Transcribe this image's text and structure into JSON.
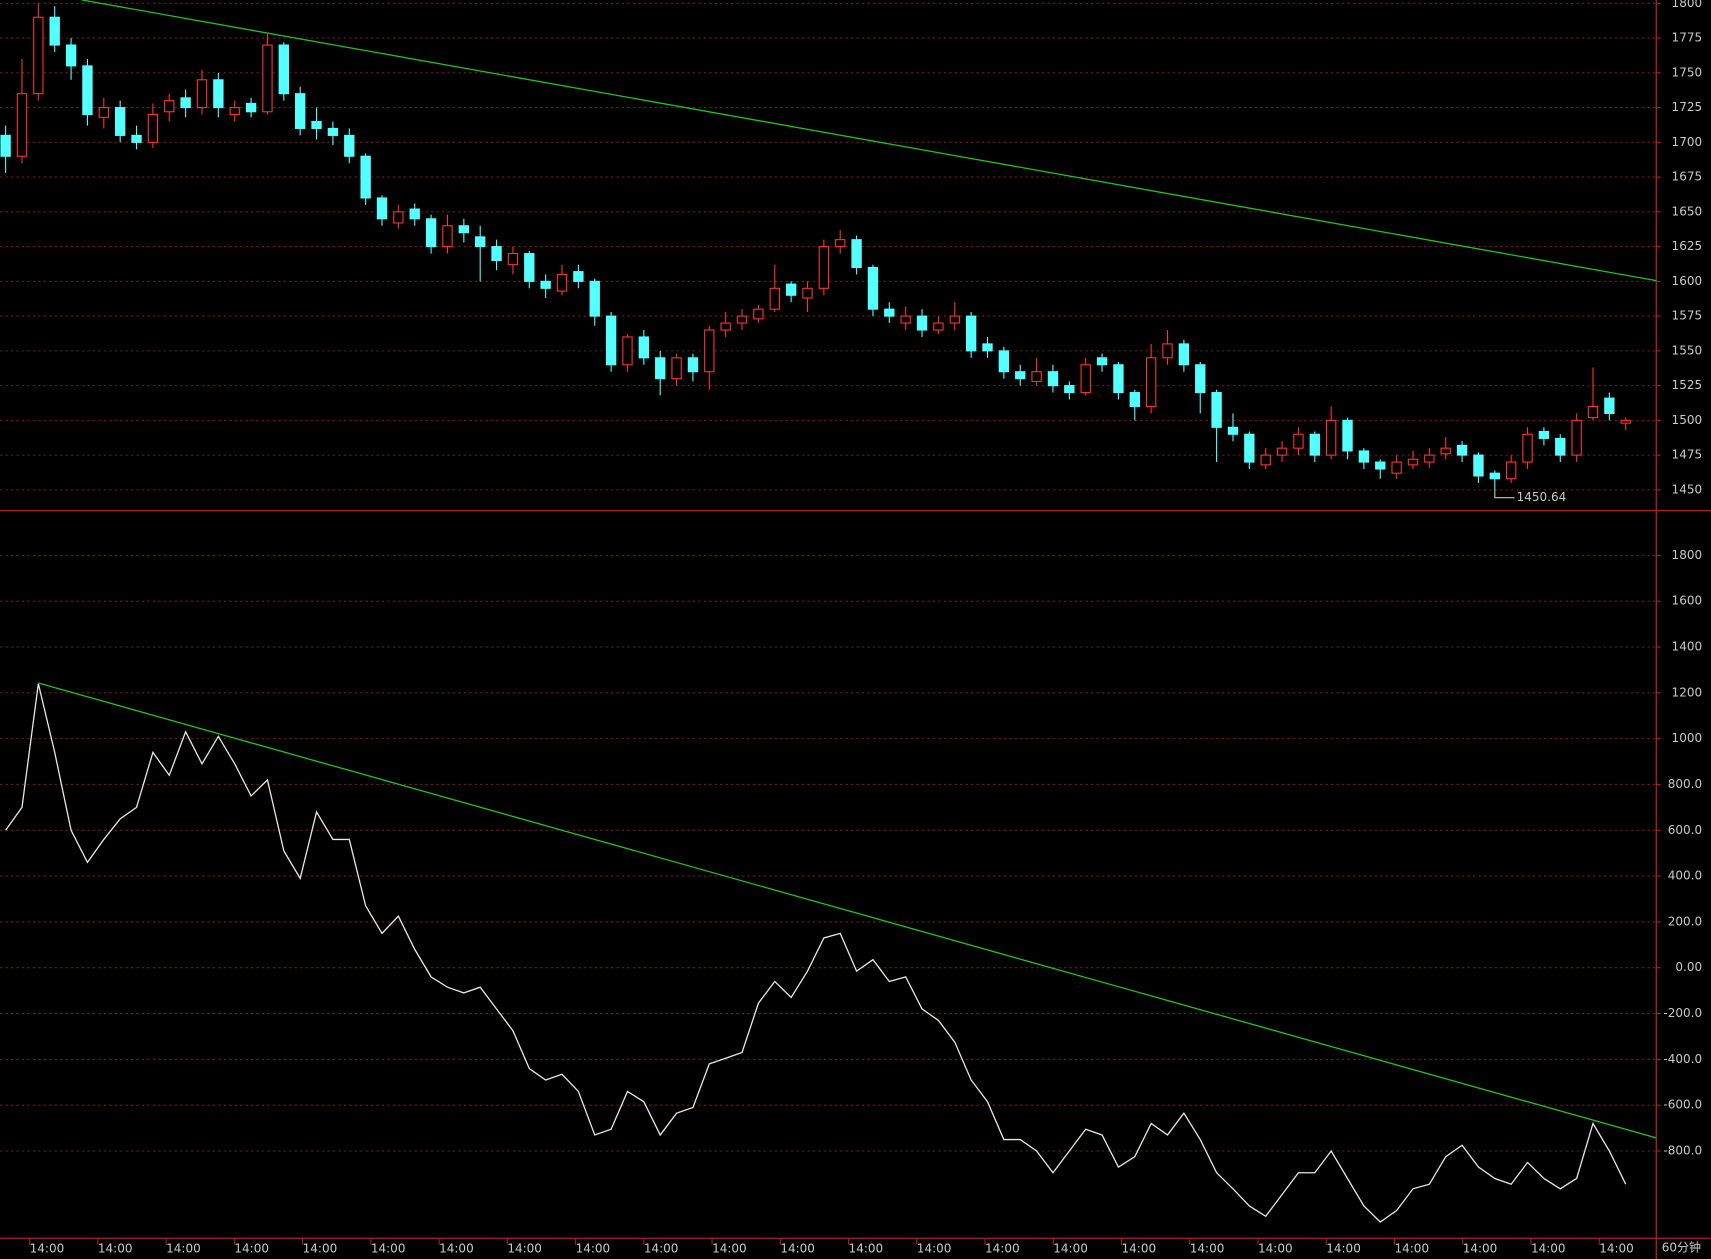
{
  "chart_data": [
    {
      "type": "candlestick",
      "open": [
        1705,
        1690,
        1735,
        1790,
        1770,
        1755,
        1718,
        1725,
        1705,
        1700,
        1722,
        1732,
        1725,
        1745,
        1720,
        1728,
        1722,
        1770,
        1735,
        1715,
        1710,
        1705,
        1690,
        1660,
        1642,
        1652,
        1645,
        1625,
        1640,
        1632,
        1625,
        1612,
        1620,
        1600,
        1593,
        1607,
        1600,
        1575,
        1540,
        1560,
        1545,
        1530,
        1545,
        1535,
        1565,
        1570,
        1573,
        1580,
        1598,
        1588,
        1595,
        1625,
        1630,
        1610,
        1580,
        1570,
        1575,
        1565,
        1570,
        1575,
        1555,
        1550,
        1535,
        1528,
        1535,
        1525,
        1520,
        1545,
        1540,
        1520,
        1510,
        1545,
        1555,
        1540,
        1520,
        1495,
        1490,
        1468,
        1475,
        1480,
        1490,
        1475,
        1500,
        1478,
        1470,
        1462,
        1468,
        1470,
        1476,
        1482,
        1475,
        1462,
        1458,
        1470,
        1492,
        1487,
        1475,
        1502,
        1516,
        1498
      ],
      "high": [
        1712,
        1760,
        1800,
        1798,
        1775,
        1760,
        1732,
        1730,
        1712,
        1728,
        1735,
        1738,
        1752,
        1750,
        1730,
        1732,
        1778,
        1772,
        1740,
        1725,
        1715,
        1710,
        1692,
        1662,
        1655,
        1656,
        1648,
        1648,
        1645,
        1640,
        1630,
        1625,
        1622,
        1605,
        1612,
        1612,
        1602,
        1578,
        1562,
        1565,
        1550,
        1548,
        1548,
        1568,
        1578,
        1580,
        1583,
        1612,
        1600,
        1600,
        1630,
        1637,
        1633,
        1612,
        1585,
        1582,
        1580,
        1575,
        1585,
        1578,
        1560,
        1553,
        1540,
        1545,
        1540,
        1528,
        1545,
        1548,
        1542,
        1522,
        1555,
        1565,
        1558,
        1542,
        1522,
        1505,
        1492,
        1480,
        1485,
        1495,
        1492,
        1510,
        1502,
        1480,
        1472,
        1475,
        1478,
        1480,
        1488,
        1485,
        1477,
        1464,
        1475,
        1495,
        1495,
        1490,
        1505,
        1538,
        1520,
        1502
      ],
      "low": [
        1678,
        1685,
        1730,
        1765,
        1745,
        1712,
        1710,
        1700,
        1695,
        1696,
        1715,
        1718,
        1720,
        1718,
        1715,
        1718,
        1720,
        1730,
        1705,
        1702,
        1698,
        1685,
        1655,
        1640,
        1638,
        1640,
        1620,
        1620,
        1628,
        1600,
        1608,
        1605,
        1595,
        1588,
        1590,
        1595,
        1568,
        1535,
        1535,
        1540,
        1518,
        1525,
        1528,
        1522,
        1560,
        1565,
        1570,
        1578,
        1585,
        1578,
        1590,
        1620,
        1605,
        1575,
        1570,
        1565,
        1560,
        1562,
        1565,
        1545,
        1545,
        1530,
        1525,
        1525,
        1520,
        1515,
        1518,
        1535,
        1515,
        1500,
        1505,
        1540,
        1535,
        1505,
        1470,
        1485,
        1465,
        1465,
        1470,
        1475,
        1470,
        1472,
        1472,
        1465,
        1458,
        1458,
        1465,
        1466,
        1472,
        1470,
        1455,
        1450.64,
        1455,
        1465,
        1482,
        1470,
        1470,
        1500,
        1500,
        1493
      ],
      "close": [
        1690,
        1735,
        1790,
        1770,
        1755,
        1720,
        1725,
        1705,
        1700,
        1720,
        1730,
        1725,
        1745,
        1725,
        1725,
        1722,
        1770,
        1735,
        1710,
        1710,
        1705,
        1690,
        1660,
        1645,
        1650,
        1645,
        1625,
        1640,
        1635,
        1625,
        1615,
        1620,
        1600,
        1595,
        1605,
        1600,
        1575,
        1540,
        1560,
        1545,
        1530,
        1545,
        1535,
        1565,
        1570,
        1575,
        1580,
        1595,
        1590,
        1595,
        1625,
        1630,
        1610,
        1580,
        1575,
        1575,
        1565,
        1570,
        1575,
        1550,
        1550,
        1535,
        1530,
        1535,
        1525,
        1520,
        1540,
        1540,
        1520,
        1510,
        1545,
        1555,
        1540,
        1520,
        1495,
        1490,
        1470,
        1475,
        1480,
        1490,
        1475,
        1500,
        1478,
        1470,
        1465,
        1470,
        1472,
        1475,
        1480,
        1475,
        1460,
        1458,
        1470,
        1490,
        1487,
        1475,
        1500,
        1510,
        1505,
        1500
      ],
      "up_color": "#ff3232",
      "down_color": "#54ffff",
      "xlim": [
        -0.333,
        100.867
      ],
      "ylim": [
        1435.1,
        1802.4
      ],
      "yticks": [
        1450,
        1475,
        1500,
        1525,
        1550,
        1575,
        1600,
        1625,
        1650,
        1675,
        1700,
        1725,
        1750,
        1775,
        1800
      ],
      "grid": true,
      "trendline": {
        "color": "#22c022",
        "x": [
          4.67,
          100.867
        ],
        "y": [
          1802.4,
          1600.5
        ]
      }
    },
    {
      "type": "line",
      "values": [
        600,
        700,
        1240,
        940,
        600,
        460,
        560,
        650,
        700,
        940,
        840,
        1030,
        890,
        1010,
        890,
        750,
        820,
        510,
        390,
        680,
        560,
        560,
        270,
        150,
        225,
        80,
        -40,
        -85,
        -110,
        -85,
        -180,
        -275,
        -440,
        -490,
        -465,
        -540,
        -730,
        -705,
        -540,
        -585,
        -730,
        -635,
        -610,
        -420,
        -395,
        -370,
        -155,
        -60,
        -130,
        -15,
        130,
        150,
        -15,
        35,
        -60,
        -40,
        -180,
        -230,
        -325,
        -490,
        -585,
        -750,
        -750,
        -800,
        -895,
        -800,
        -705,
        -730,
        -870,
        -825,
        -680,
        -730,
        -635,
        -750,
        -895,
        -965,
        -1040,
        -1085,
        -990,
        -895,
        -895,
        -800,
        -920,
        -1040,
        -1110,
        -1060,
        -965,
        -945,
        -825,
        -775,
        -870,
        -920,
        -945,
        -850,
        -920,
        -965,
        -920,
        -680,
        -800,
        -945
      ],
      "color": "#e6e6e6",
      "xlim": [
        -0.333,
        100.867
      ],
      "ylim": [
        -1181,
        1986
      ],
      "yticks": [
        {
          "value": -800,
          "label": "-800.0"
        },
        {
          "value": -600,
          "label": "-600.0"
        },
        {
          "value": -400,
          "label": "-400.0"
        },
        {
          "value": -200,
          "label": "-200.0"
        },
        {
          "value": 0,
          "label": "0.00"
        },
        {
          "value": 200,
          "label": "200.0"
        },
        {
          "value": 400,
          "label": "400.0"
        },
        {
          "value": 600,
          "label": "600.0"
        },
        {
          "value": 800,
          "label": "800.0"
        },
        1000,
        1200,
        1400,
        1600,
        1800
      ],
      "xticks": [
        {
          "value": 1.47,
          "label": "14:00"
        },
        {
          "value": 5.64,
          "label": "14:00"
        },
        {
          "value": 9.81,
          "label": "14:00"
        },
        {
          "value": 13.98,
          "label": "14:00"
        },
        {
          "value": 18.15,
          "label": "14:00"
        },
        {
          "value": 22.32,
          "label": "14:00"
        },
        {
          "value": 26.49,
          "label": "14:00"
        },
        {
          "value": 30.66,
          "label": "14:00"
        },
        {
          "value": 34.83,
          "label": "14:00"
        },
        {
          "value": 39.0,
          "label": "14:00"
        },
        {
          "value": 43.17,
          "label": "14:00"
        },
        {
          "value": 47.34,
          "label": "14:00"
        },
        {
          "value": 51.51,
          "label": "14:00"
        },
        {
          "value": 55.68,
          "label": "14:00"
        },
        {
          "value": 59.85,
          "label": "14:00"
        },
        {
          "value": 64.02,
          "label": "14:00"
        },
        {
          "value": 68.19,
          "label": "14:00"
        },
        {
          "value": 72.36,
          "label": "14:00"
        },
        {
          "value": 76.53,
          "label": "14:00"
        },
        {
          "value": 80.7,
          "label": "14:00"
        },
        {
          "value": 84.87,
          "label": "14:00"
        },
        {
          "value": 89.04,
          "label": "14:00"
        },
        {
          "value": 93.21,
          "label": "14:00"
        },
        {
          "value": 97.38,
          "label": "14:00"
        }
      ],
      "grid": true,
      "trendline": {
        "color": "#22c022",
        "x": [
          2.0,
          100.867
        ],
        "y": [
          1243,
          -743
        ]
      }
    }
  ],
  "period_label": "60分钟"
}
